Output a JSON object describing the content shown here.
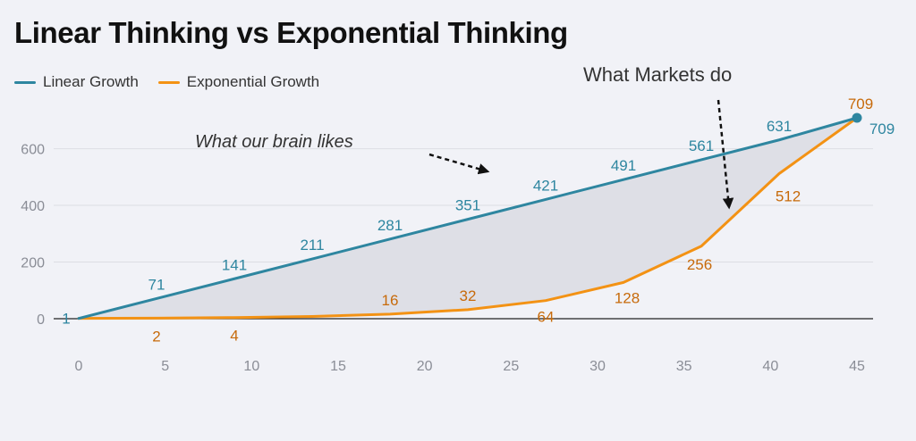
{
  "chart_data": {
    "type": "line",
    "title": "Linear Thinking vs Exponential Thinking",
    "xlabel": "",
    "ylabel": "",
    "xlim": [
      0,
      45
    ],
    "ylim": [
      0,
      709
    ],
    "x_ticks": [
      0,
      5,
      10,
      15,
      20,
      25,
      30,
      35,
      40,
      45
    ],
    "y_ticks": [
      0,
      200,
      400,
      600
    ],
    "grid": true,
    "legend": "top-left",
    "series": [
      {
        "name": "Linear Growth",
        "color": "#2e86a0",
        "points": [
          [
            0,
            1
          ],
          [
            4.5,
            71
          ],
          [
            9,
            141
          ],
          [
            13.5,
            211
          ],
          [
            18,
            281
          ],
          [
            22.5,
            351
          ],
          [
            27,
            421
          ],
          [
            31.5,
            491
          ],
          [
            36,
            561
          ],
          [
            40.5,
            631
          ],
          [
            45,
            709
          ]
        ],
        "labels": [
          "1",
          "71",
          "141",
          "211",
          "281",
          "351",
          "421",
          "491",
          "561",
          "631",
          "709"
        ]
      },
      {
        "name": "Exponential Growth",
        "color": "#f39214",
        "points": [
          [
            0,
            1
          ],
          [
            4.5,
            2
          ],
          [
            9,
            4
          ],
          [
            13.5,
            8
          ],
          [
            18,
            16
          ],
          [
            22.5,
            32
          ],
          [
            27,
            64
          ],
          [
            31.5,
            128
          ],
          [
            36,
            256
          ],
          [
            40.5,
            512
          ],
          [
            45,
            709
          ]
        ],
        "labels": [
          "1",
          "2",
          "4",
          "",
          "16",
          "32",
          "64",
          "128",
          "256",
          "512",
          "709"
        ]
      }
    ],
    "annotations": [
      {
        "text": "What our brain likes"
      },
      {
        "text": "What Markets do"
      }
    ]
  }
}
